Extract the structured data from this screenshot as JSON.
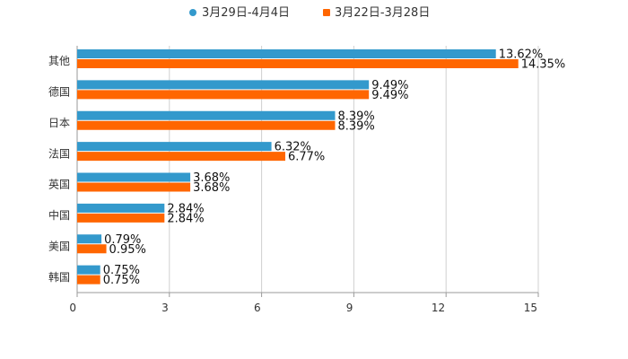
{
  "chart_data": {
    "type": "bar",
    "orientation": "horizontal",
    "title": "",
    "xlabel": "",
    "ylabel": "",
    "xlim": [
      0,
      15
    ],
    "x_ticks": [
      0,
      3,
      6,
      9,
      12,
      15
    ],
    "x_tick_labels": [
      "0",
      "3",
      "6",
      "9",
      "12",
      "15"
    ],
    "grid": true,
    "legend_position": "top-center",
    "categories": [
      "其他",
      "德国",
      "日本",
      "法国",
      "英国",
      "中国",
      "美国",
      "韩国"
    ],
    "series": [
      {
        "name": "3月29日-4月4日",
        "color": "#3399cc",
        "values": [
          13.62,
          9.49,
          8.39,
          6.32,
          3.68,
          2.84,
          0.79,
          0.75
        ],
        "labels": [
          "13.62%",
          "9.49%",
          "8.39%",
          "6.32%",
          "3.68%",
          "2.84%",
          "0.79%",
          "0.75%"
        ]
      },
      {
        "name": "3月22日-3月28日",
        "color": "#ff6600",
        "values": [
          14.35,
          9.49,
          8.39,
          6.77,
          3.68,
          2.84,
          0.95,
          0.75
        ],
        "labels": [
          "14.35%",
          "9.49%",
          "8.39%",
          "6.77%",
          "3.68%",
          "2.84%",
          "0.95%",
          "0.75%"
        ]
      }
    ]
  }
}
